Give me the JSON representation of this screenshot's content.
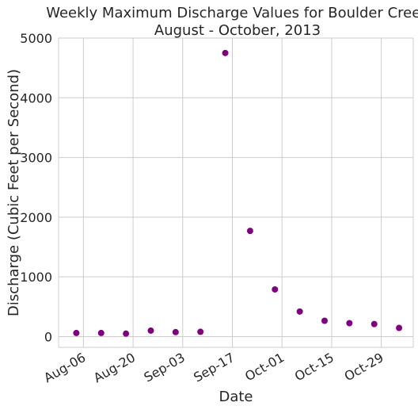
{
  "chart_data": {
    "type": "scatter",
    "title_line1": "Weekly Maximum Discharge Values for Boulder Creek",
    "title_line2": "August - October, 2013",
    "xlabel": "Date",
    "ylabel": "Discharge (Cubic Feet per Second)",
    "color": "#800080",
    "grid": true,
    "xlim": [
      "2013-07-30",
      "2013-11-07"
    ],
    "ylim": [
      -180,
      5000
    ],
    "x_ticks": [
      {
        "date": "2013-08-06",
        "label": "Aug-06"
      },
      {
        "date": "2013-08-20",
        "label": "Aug-20"
      },
      {
        "date": "2013-09-03",
        "label": "Sep-03"
      },
      {
        "date": "2013-09-17",
        "label": "Sep-17"
      },
      {
        "date": "2013-10-01",
        "label": "Oct-01"
      },
      {
        "date": "2013-10-15",
        "label": "Oct-15"
      },
      {
        "date": "2013-10-29",
        "label": "Oct-29"
      }
    ],
    "y_ticks": [
      0,
      1000,
      2000,
      3000,
      4000,
      5000
    ],
    "points": [
      {
        "x": "2013-08-04",
        "y": 60
      },
      {
        "x": "2013-08-11",
        "y": 60
      },
      {
        "x": "2013-08-18",
        "y": 50
      },
      {
        "x": "2013-08-25",
        "y": 100
      },
      {
        "x": "2013-09-01",
        "y": 75
      },
      {
        "x": "2013-09-08",
        "y": 80
      },
      {
        "x": "2013-09-15",
        "y": 4750
      },
      {
        "x": "2013-09-22",
        "y": 1770
      },
      {
        "x": "2013-09-29",
        "y": 790
      },
      {
        "x": "2013-10-06",
        "y": 420
      },
      {
        "x": "2013-10-13",
        "y": 265
      },
      {
        "x": "2013-10-20",
        "y": 225
      },
      {
        "x": "2013-10-27",
        "y": 210
      },
      {
        "x": "2013-11-03",
        "y": 145
      }
    ]
  }
}
